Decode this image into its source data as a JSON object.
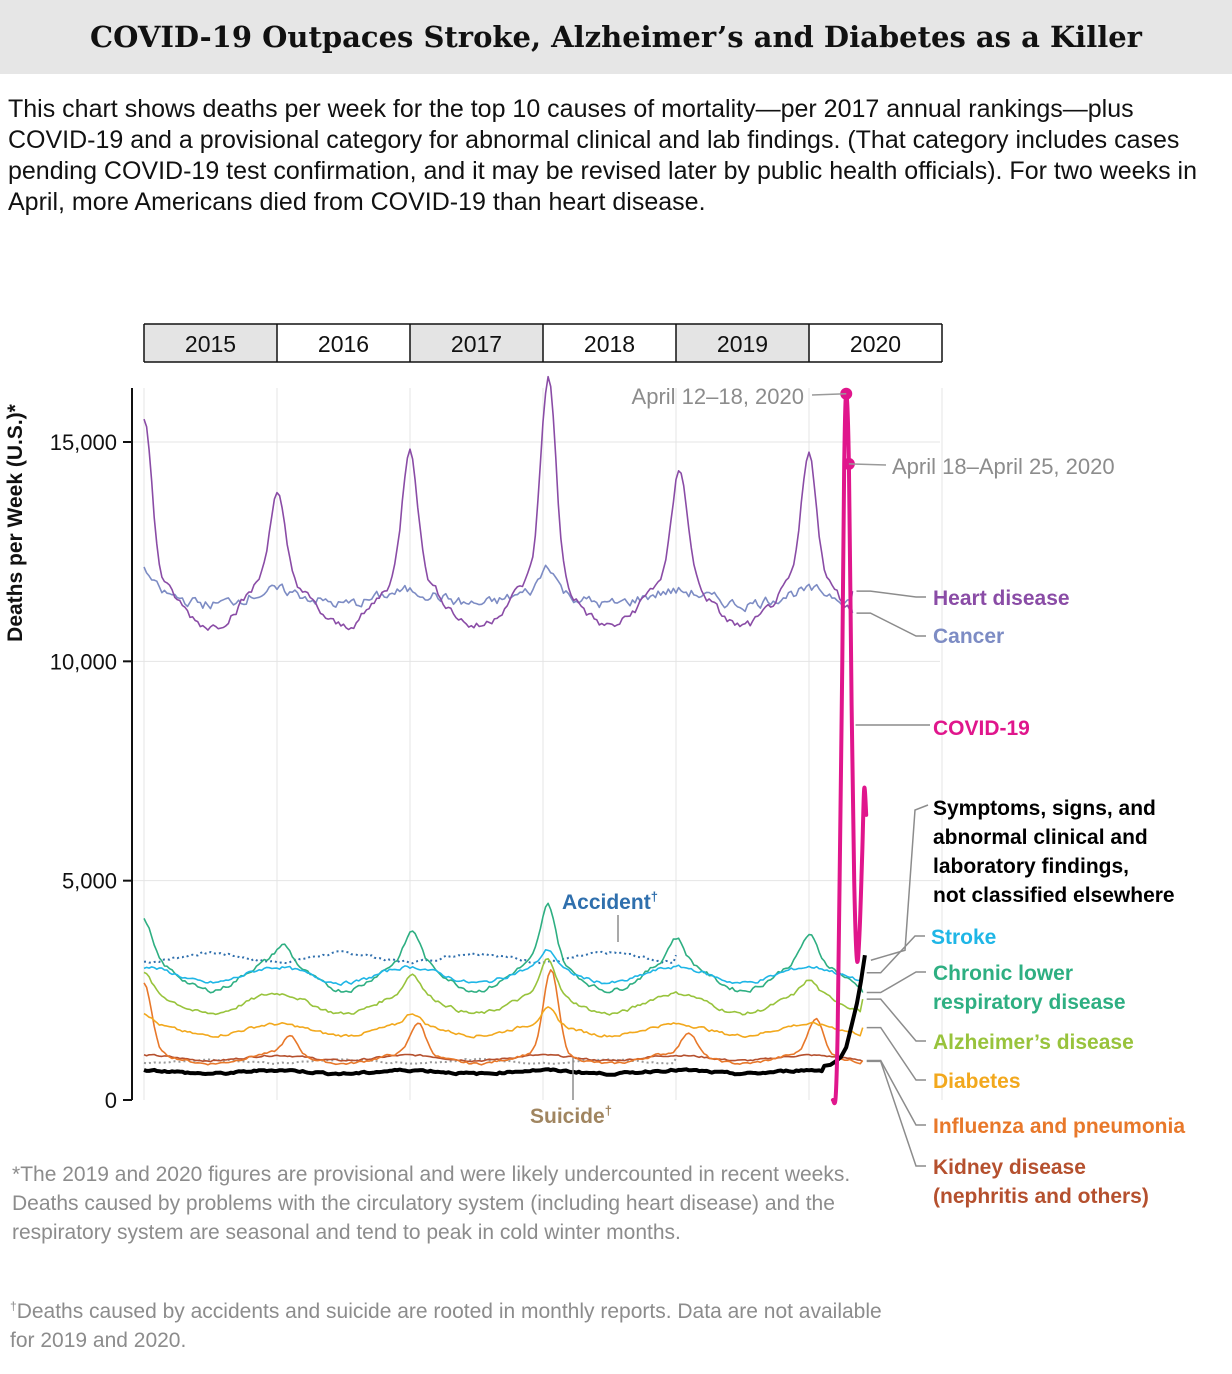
{
  "header": {
    "title": "COVID-19 Outpaces Stroke, Alzheimer’s and Diabetes as a Killer",
    "description": "This chart shows deaths per week for the top 10 causes of mortality—per 2017 annual rankings—plus COVID-19 and a provisional category for abnormal clinical and lab findings. (That category includes cases pending COVID-19 test confirmation, and it may be revised later by public health officials). For two weeks in April, more Americans died from COVID-19 than heart disease."
  },
  "footnotes": {
    "note1_mark": "*",
    "note1": "The 2019 and 2020 figures are provisional and were likely undercounted in recent weeks. Deaths caused by problems with the circulatory system (including heart disease) and the respiratory system are seasonal and tend to peak in cold winter months.",
    "note2_mark": "†",
    "note2": "Deaths caused by accidents and suicide are rooted in monthly reports. Data are not available for 2019 and 2020."
  },
  "chart_data": {
    "type": "line",
    "title": "COVID-19 Outpaces Stroke, Alzheimer’s and Diabetes as a Killer",
    "xlabel": "",
    "ylabel": "Deaths per Week (U.S.)*",
    "x_start": 2015,
    "x_end": 2020.33,
    "ylim": [
      0,
      16000
    ],
    "y_ticks": [
      0,
      5000,
      10000,
      15000
    ],
    "y_tick_labels": [
      "0",
      "5,000",
      "10,000",
      "15,000"
    ],
    "year_bands": [
      "2015",
      "2016",
      "2017",
      "2018",
      "2019",
      "2020"
    ],
    "annotations": [
      {
        "label": "April 12–18, 2020",
        "x": 2020.28,
        "y": 16100,
        "series": "COVID-19"
      },
      {
        "label": "April 18–April 25, 2020",
        "x": 2020.3,
        "y": 14500,
        "series": "COVID-19"
      }
    ],
    "series": [
      {
        "name": "Heart disease",
        "color": "#8a4ca6",
        "style": "solid",
        "base": 11400,
        "winter_amp": 600,
        "peaks": [
          [
            2015.0,
            3600
          ],
          [
            2016.0,
            1800
          ],
          [
            2017.0,
            2900
          ],
          [
            2018.04,
            4500
          ],
          [
            2019.03,
            2400
          ],
          [
            2020.0,
            2700
          ]
        ],
        "noise": 180,
        "end_year": 2020.33,
        "end_value": 11600
      },
      {
        "name": "Cancer",
        "color": "#7d8cc4",
        "style": "solid",
        "base": 11450,
        "winter_amp": 150,
        "peaks": [
          [
            2015.0,
            450
          ],
          [
            2018.04,
            600
          ]
        ],
        "noise": 220,
        "end_year": 2020.33,
        "end_value": 11100
      },
      {
        "name": "COVID-19",
        "color": "#e0168c",
        "style": "solid",
        "points": [
          [
            2020.18,
            0
          ],
          [
            2020.2,
            50
          ],
          [
            2020.215,
            1500
          ],
          [
            2020.23,
            5000
          ],
          [
            2020.25,
            10000
          ],
          [
            2020.265,
            14500
          ],
          [
            2020.28,
            16100
          ],
          [
            2020.3,
            14500
          ],
          [
            2020.32,
            9000
          ],
          [
            2020.34,
            5000
          ],
          [
            2020.36,
            3200
          ],
          [
            2020.38,
            3800
          ],
          [
            2020.4,
            5600
          ],
          [
            2020.415,
            7100
          ],
          [
            2020.43,
            6500
          ]
        ]
      },
      {
        "name": "Symptoms, signs, and abnormal clinical and laboratory findings, not classified elsewhere",
        "color": "#000000",
        "style": "thick",
        "base": 640,
        "winter_amp": 40,
        "peaks": [],
        "noise": 40,
        "end_year": 2020.12,
        "end_value": 780,
        "tail": [
          [
            2020.16,
            800
          ],
          [
            2020.2,
            880
          ],
          [
            2020.24,
            980
          ],
          [
            2020.28,
            1200
          ],
          [
            2020.32,
            1700
          ],
          [
            2020.36,
            2200
          ],
          [
            2020.39,
            2700
          ],
          [
            2020.42,
            3300
          ]
        ]
      },
      {
        "name": "Stroke",
        "color": "#1fb6e6",
        "style": "solid",
        "base": 2850,
        "winter_amp": 180,
        "peaks": [
          [
            2018.04,
            400
          ]
        ],
        "noise": 70,
        "end_year": 2020.42,
        "end_value": 2900
      },
      {
        "name": "Chronic lower respiratory disease",
        "color": "#2eaf82",
        "style": "solid",
        "base": 2850,
        "winter_amp": 350,
        "peaks": [
          [
            2015.0,
            900
          ],
          [
            2016.05,
            350
          ],
          [
            2017.02,
            650
          ],
          [
            2018.04,
            1250
          ],
          [
            2019.0,
            500
          ],
          [
            2020.0,
            550
          ]
        ],
        "noise": 90,
        "end_year": 2020.42,
        "end_value": 2450
      },
      {
        "name": "Alzheimer’s disease",
        "color": "#98c33c",
        "style": "solid",
        "base": 2200,
        "winter_amp": 230,
        "peaks": [
          [
            2015.0,
            450
          ],
          [
            2017.02,
            450
          ],
          [
            2018.04,
            800
          ],
          [
            2020.0,
            300
          ]
        ],
        "noise": 70,
        "end_year": 2020.42,
        "end_value": 2300
      },
      {
        "name": "Diabetes",
        "color": "#f2a81d",
        "style": "solid",
        "base": 1600,
        "winter_amp": 130,
        "peaks": [
          [
            2015.0,
            250
          ],
          [
            2017.02,
            250
          ],
          [
            2018.04,
            350
          ]
        ],
        "noise": 60,
        "end_year": 2020.42,
        "end_value": 1650
      },
      {
        "name": "Influenza and pneumonia",
        "color": "#e8782a",
        "style": "solid",
        "base": 950,
        "winter_amp": 120,
        "peaks": [
          [
            2015.0,
            1600
          ],
          [
            2016.1,
            400
          ],
          [
            2017.06,
            700
          ],
          [
            2018.06,
            1900
          ],
          [
            2019.1,
            500
          ],
          [
            2020.05,
            800
          ]
        ],
        "noise": 50,
        "end_year": 2020.42,
        "end_value": 900
      },
      {
        "name": "Kidney disease (nephritis and others)",
        "color": "#b5502e",
        "style": "solid",
        "base": 960,
        "winter_amp": 60,
        "peaks": [],
        "noise": 35,
        "end_year": 2020.42,
        "end_value": 880
      },
      {
        "name": "Accident",
        "color": "#2f6fad",
        "style": "dotted",
        "base": 3250,
        "winter_amp": -100,
        "peaks": [],
        "noise": 60,
        "end_year": 2019.0,
        "end_value": 3300
      },
      {
        "name": "Suicide",
        "color": "#9a9a9a",
        "style": "dotted",
        "base": 880,
        "winter_amp": -40,
        "peaks": [],
        "noise": 30,
        "end_year": 2019.0,
        "end_value": 960
      }
    ],
    "series_labels": [
      {
        "name": "Heart disease",
        "text": "Heart disease",
        "color": "#8a4ca6"
      },
      {
        "name": "Cancer",
        "text": "Cancer",
        "color": "#7d8cc4"
      },
      {
        "name": "COVID-19",
        "text": "COVID-19",
        "color": "#e0168c"
      },
      {
        "name": "Symptoms",
        "lines": [
          "Symptoms, signs, and",
          "abnormal clinical and",
          "laboratory findings,",
          "not classified elsewhere"
        ],
        "color": "#000000"
      },
      {
        "name": "Stroke",
        "text": "Stroke",
        "color": "#1fb6e6"
      },
      {
        "name": "Chronic lower respiratory disease",
        "lines": [
          "Chronic lower",
          "respiratory disease"
        ],
        "color": "#2eaf82"
      },
      {
        "name": "Alzheimer’s disease",
        "text": "Alzheimer’s disease",
        "color": "#98c33c"
      },
      {
        "name": "Diabetes",
        "text": "Diabetes",
        "color": "#f2a81d"
      },
      {
        "name": "Influenza and pneumonia",
        "text": "Influenza and pneumonia",
        "color": "#e8782a"
      },
      {
        "name": "Kidney disease",
        "lines": [
          "Kidney disease",
          "(nephritis and others)"
        ],
        "color": "#b5502e"
      },
      {
        "name": "Accident",
        "text": "Accident",
        "mark": "†",
        "color": "#2f6fad"
      },
      {
        "name": "Suicide",
        "text": "Suicide",
        "mark": "†",
        "color": "#a08560"
      }
    ]
  }
}
